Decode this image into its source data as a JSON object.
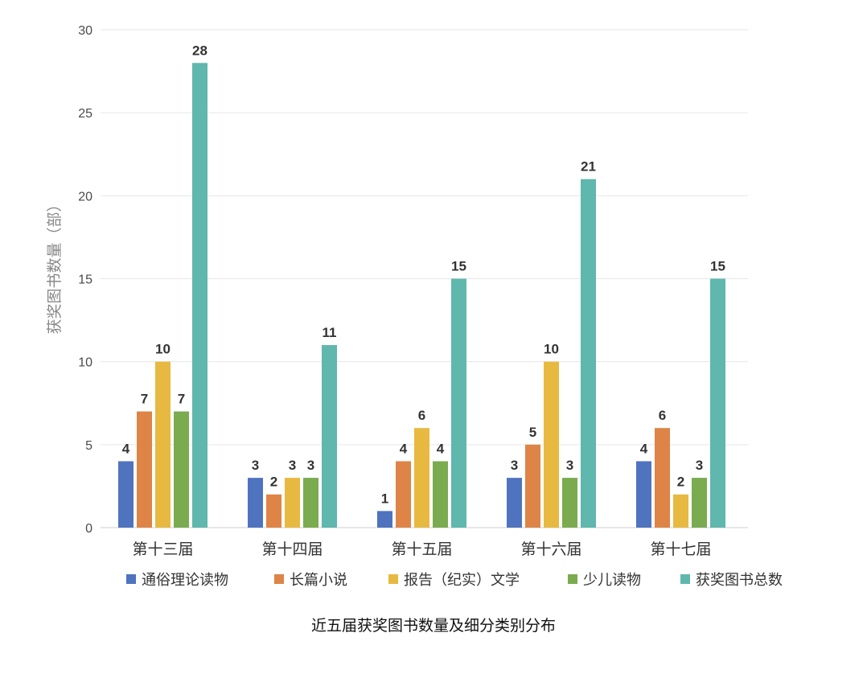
{
  "chart_data": {
    "type": "bar",
    "title": "",
    "caption": "近五届获奖图书数量及细分类别分布",
    "xlabel": "",
    "ylabel": "获奖图书数量（部）",
    "ylim": [
      0,
      30
    ],
    "yticks": [
      0,
      5,
      10,
      15,
      20,
      25,
      30
    ],
    "grid": true,
    "legend_position": "bottom",
    "categories": [
      "第十三届",
      "第十四届",
      "第十五届",
      "第十六届",
      "第十七届"
    ],
    "series": [
      {
        "name": "通俗理论读物",
        "color": "#4f73be",
        "values": [
          4,
          3,
          1,
          3,
          4
        ]
      },
      {
        "name": "长篇小说",
        "color": "#dd8446",
        "values": [
          7,
          2,
          4,
          5,
          6
        ]
      },
      {
        "name": "报告（纪实）文学",
        "color": "#e8b941",
        "values": [
          10,
          3,
          6,
          10,
          2
        ]
      },
      {
        "name": "少儿读物",
        "color": "#7aab4f",
        "values": [
          7,
          3,
          4,
          3,
          3
        ]
      },
      {
        "name": "获奖图书总数",
        "color": "#5fb7ad",
        "values": [
          28,
          11,
          15,
          21,
          15
        ]
      }
    ]
  }
}
